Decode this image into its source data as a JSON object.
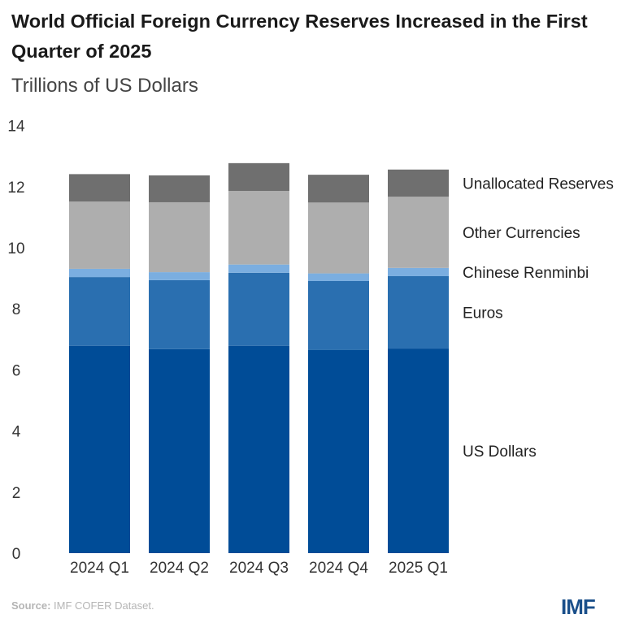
{
  "chart_data": {
    "type": "bar",
    "stacked": true,
    "title": "World Official Foreign Currency Reserves Increased in the First Quarter of 2025",
    "subtitle": "Trillions of US Dollars",
    "xlabel": "",
    "ylabel": "",
    "ylim": [
      0,
      14
    ],
    "yticks": [
      0,
      2,
      4,
      6,
      8,
      10,
      12,
      14
    ],
    "grid": false,
    "legend": "right (labels beside last bar)",
    "categories": [
      "2024 Q1",
      "2024 Q2",
      "2024 Q3",
      "2024 Q4",
      "2025 Q1"
    ],
    "series": [
      {
        "name": "US Dollars",
        "color": "#004C97",
        "values": [
          6.79,
          6.68,
          6.79,
          6.65,
          6.7
        ]
      },
      {
        "name": "Euros",
        "color": "#2A6FB0",
        "values": [
          2.25,
          2.26,
          2.39,
          2.26,
          2.37
        ]
      },
      {
        "name": "Chinese Renminbi",
        "color": "#7BAEE0",
        "values": [
          0.27,
          0.26,
          0.27,
          0.25,
          0.27
        ]
      },
      {
        "name": "Other Currencies",
        "color": "#AEAEAE",
        "values": [
          2.2,
          2.29,
          2.41,
          2.32,
          2.33
        ]
      },
      {
        "name": "Unallocated Reserves",
        "color": "#6F6F6F",
        "values": [
          0.9,
          0.88,
          0.91,
          0.91,
          0.89
        ]
      }
    ]
  },
  "footer": {
    "source_label": "Source:",
    "source_text": "IMF COFER Dataset.",
    "logo": "IMF"
  }
}
